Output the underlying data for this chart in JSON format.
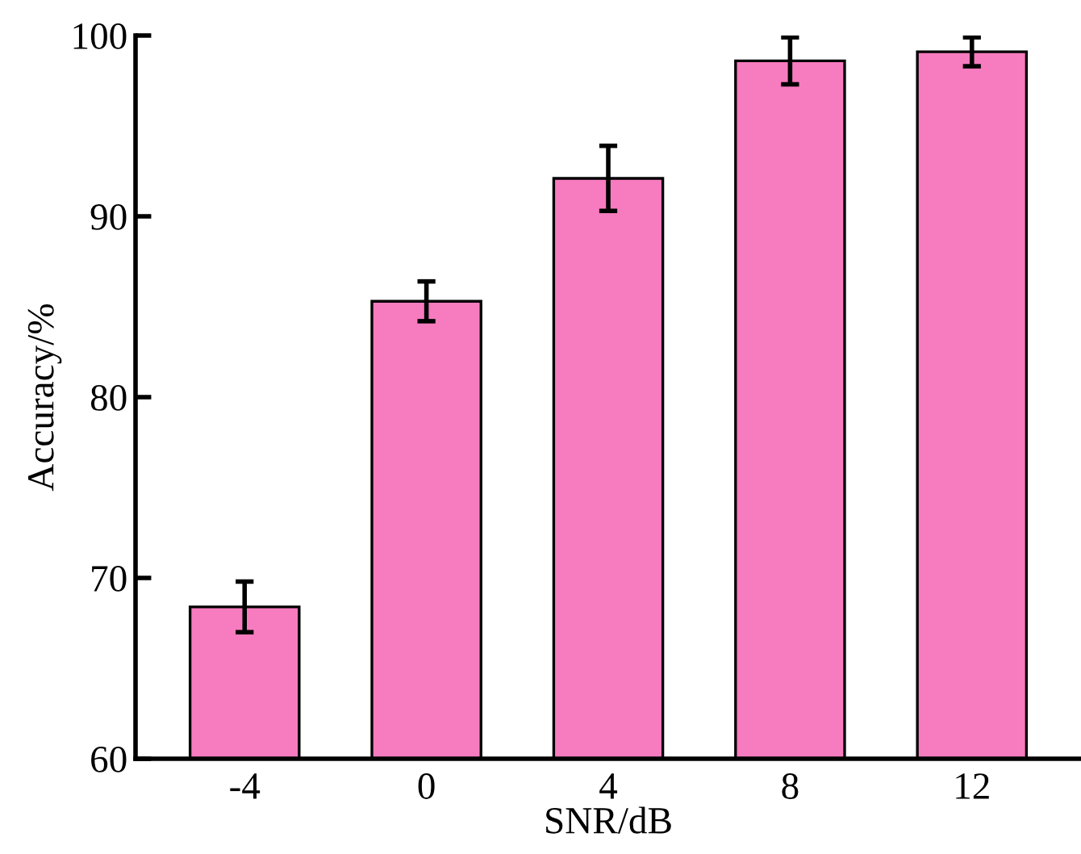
{
  "chart_data": {
    "type": "bar",
    "xlabel": "SNR/dB",
    "ylabel": "Accuracy/%",
    "categories": [
      "-4",
      "0",
      "4",
      "8",
      "12"
    ],
    "values": [
      68.4,
      85.3,
      92.1,
      98.6,
      99.1
    ],
    "errors": [
      1.4,
      1.1,
      1.8,
      1.3,
      0.8
    ],
    "color": "#f77bbf",
    "ylim": [
      60,
      100
    ],
    "yticks": [
      60,
      70,
      80,
      90,
      100
    ],
    "grid": false
  }
}
